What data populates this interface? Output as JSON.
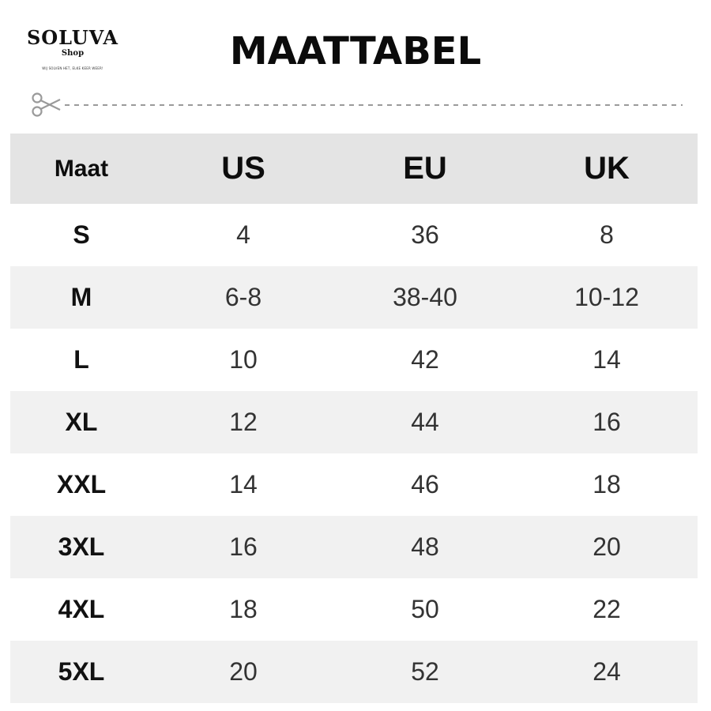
{
  "logo": {
    "name": "SOLUVA",
    "sub": "Shop",
    "tagline": "WIJ SOLVEN HET, ELKE KEER WEER!"
  },
  "title": "MAATTABEL",
  "icons": {
    "cut": "scissors-icon"
  },
  "colors": {
    "header_bg": "#e4e4e4",
    "stripe_bg": "#f1f1f1",
    "dash": "#9a9a9a"
  },
  "table": {
    "headers": [
      "Maat",
      "US",
      "EU",
      "UK"
    ],
    "rows": [
      [
        "S",
        "4",
        "36",
        "8"
      ],
      [
        "M",
        "6-8",
        "38-40",
        "10-12"
      ],
      [
        "L",
        "10",
        "42",
        "14"
      ],
      [
        "XL",
        "12",
        "44",
        "16"
      ],
      [
        "XXL",
        "14",
        "46",
        "18"
      ],
      [
        "3XL",
        "16",
        "48",
        "20"
      ],
      [
        "4XL",
        "18",
        "50",
        "22"
      ],
      [
        "5XL",
        "20",
        "52",
        "24"
      ]
    ]
  }
}
